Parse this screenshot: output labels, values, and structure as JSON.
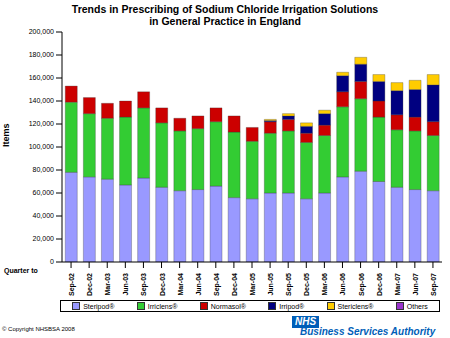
{
  "chart_data": {
    "type": "bar",
    "title": "Trends in Prescribing of Sodium Chloride Irrigation Solutions\nin General Practice in England",
    "xlabel": "Quarter to",
    "ylabel": "Items",
    "copyright": "© Copyright NHSBSA 2008",
    "logo": "NHS",
    "organisation": "Business Services Authority",
    "stacked": true,
    "grid": false,
    "categories": [
      "Sep-02",
      "Dec-02",
      "Mar-03",
      "Jun-03",
      "Sep-03",
      "Dec-03",
      "Mar-04",
      "Jun-04",
      "Sep-04",
      "Dec-04",
      "Mar-05",
      "Jun-05",
      "Sep-05",
      "Dec-05",
      "Mar-06",
      "Jun-06",
      "Sep-06",
      "Dec-06",
      "Mar-07",
      "Jun-07",
      "Sep-07"
    ],
    "series": [
      {
        "name": "Steripod®",
        "color": "#9999ff",
        "values": [
          78000,
          74000,
          72000,
          67000,
          73000,
          65000,
          62000,
          63000,
          66000,
          56000,
          55000,
          60000,
          60000,
          55000,
          60000,
          74000,
          79000,
          70000,
          65000,
          63000,
          62000
        ]
      },
      {
        "name": "Irriclens®",
        "color": "#33cc33",
        "values": [
          61000,
          55000,
          53000,
          59000,
          61000,
          56000,
          52000,
          53000,
          56000,
          57000,
          50000,
          52000,
          54000,
          49000,
          50000,
          61000,
          63000,
          56000,
          50000,
          51000,
          48000
        ]
      },
      {
        "name": "Normasol®",
        "color": "#cc0000",
        "values": [
          14000,
          14000,
          13000,
          14000,
          14000,
          13000,
          11000,
          11000,
          12000,
          14000,
          12000,
          10000,
          10000,
          8000,
          9000,
          13000,
          15000,
          14000,
          13000,
          12000,
          12000
        ]
      },
      {
        "name": "Irripod®",
        "color": "#000080",
        "values": [
          0,
          0,
          0,
          0,
          0,
          0,
          0,
          0,
          0,
          0,
          0,
          1000,
          3000,
          6000,
          10000,
          14000,
          15000,
          17000,
          21000,
          24000,
          32000
        ]
      },
      {
        "name": "Stericlens®",
        "color": "#ffcc00",
        "values": [
          0,
          0,
          0,
          0,
          0,
          0,
          0,
          0,
          0,
          0,
          0,
          1000,
          2000,
          3000,
          3000,
          3000,
          6000,
          6000,
          7000,
          8000,
          9000
        ]
      },
      {
        "name": "Others",
        "color": "#9933cc",
        "values": [
          0,
          0,
          0,
          0,
          0,
          0,
          0,
          0,
          0,
          0,
          0,
          0,
          0,
          0,
          0,
          0,
          0,
          0,
          0,
          0,
          0
        ]
      }
    ],
    "ylim": [
      0,
      200000
    ],
    "yticks": [
      0,
      {
        "value": 20000,
        "label": "20,000"
      },
      {
        "value": 40000,
        "label": "40,000"
      },
      {
        "value": 60000,
        "label": "60,000"
      },
      {
        "value": 80000,
        "label": "80,000"
      },
      {
        "value": 100000,
        "label": "100,000"
      },
      {
        "value": 120000,
        "label": "120,000"
      },
      {
        "value": 140000,
        "label": "140,000"
      },
      {
        "value": 160000,
        "label": "160,000"
      },
      {
        "value": 180000,
        "label": "180,000"
      },
      {
        "value": 200000,
        "label": "200,000"
      }
    ]
  }
}
